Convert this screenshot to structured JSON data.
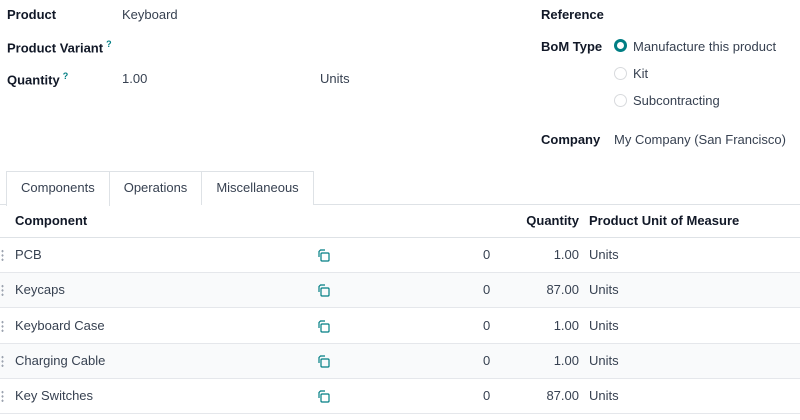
{
  "form": {
    "product_label": "Product",
    "product_value": "Keyboard",
    "variant_label": "Product Variant",
    "help": "?",
    "quantity_label": "Quantity",
    "quantity_value": "1.00",
    "quantity_uom": "Units",
    "reference_label": "Reference",
    "bom_type_label": "BoM Type",
    "bom_types": [
      {
        "label": "Manufacture this product",
        "selected": true
      },
      {
        "label": "Kit",
        "selected": false
      },
      {
        "label": "Subcontracting",
        "selected": false
      }
    ],
    "company_label": "Company",
    "company_value": "My Company (San Francisco)"
  },
  "tabs": [
    {
      "label": "Components",
      "active": true
    },
    {
      "label": "Operations"
    },
    {
      "label": "Miscellaneous"
    }
  ],
  "table": {
    "headers": {
      "component": "Component",
      "quantity": "Quantity",
      "uom": "Product Unit of Measure"
    },
    "rows": [
      {
        "component": "PCB",
        "count": "0",
        "quantity": "1.00",
        "uom": "Units"
      },
      {
        "component": "Keycaps",
        "count": "0",
        "quantity": "87.00",
        "uom": "Units"
      },
      {
        "component": "Keyboard Case",
        "count": "0",
        "quantity": "1.00",
        "uom": "Units"
      },
      {
        "component": "Charging Cable",
        "count": "0",
        "quantity": "1.00",
        "uom": "Units"
      },
      {
        "component": "Key Switches",
        "count": "0",
        "quantity": "87.00",
        "uom": "Units"
      }
    ]
  },
  "colors": {
    "accent": "#017e84"
  }
}
